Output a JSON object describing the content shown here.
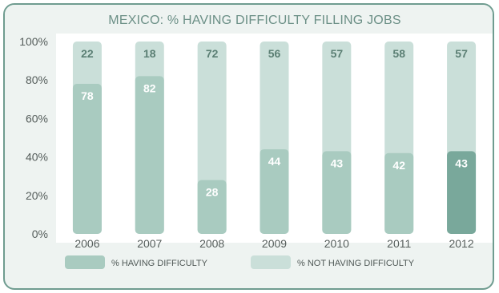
{
  "chart_data": {
    "type": "bar",
    "stacked": true,
    "title": "MEXICO: % HAVING DIFFICULTY FILLING JOBS",
    "categories": [
      "2006",
      "2007",
      "2008",
      "2009",
      "2010",
      "2011",
      "2012"
    ],
    "series": [
      {
        "name": "% HAVING DIFFICULTY",
        "values": [
          78,
          82,
          28,
          44,
          43,
          42,
          43
        ],
        "color": "#a9cbc0",
        "highlight_color": "#79a89b"
      },
      {
        "name": "% NOT HAVING DIFFICULTY",
        "values": [
          22,
          18,
          72,
          56,
          57,
          58,
          57
        ],
        "color": "#cadfd9"
      }
    ],
    "highlight_category": "2012",
    "y_ticks": [
      "0%",
      "20%",
      "40%",
      "60%",
      "80%",
      "100%"
    ],
    "ylim": [
      0,
      100
    ],
    "xlabel": "",
    "ylabel": "",
    "grid": false,
    "legend_position": "bottom"
  },
  "colors": {
    "frame_border": "#6f9c90",
    "panel_background": "#eef3f1",
    "plot_background": "#ffffff",
    "title_color": "#6b8f86",
    "label_on_bottom": "#ffffff",
    "label_on_top": "#5b7f74"
  }
}
